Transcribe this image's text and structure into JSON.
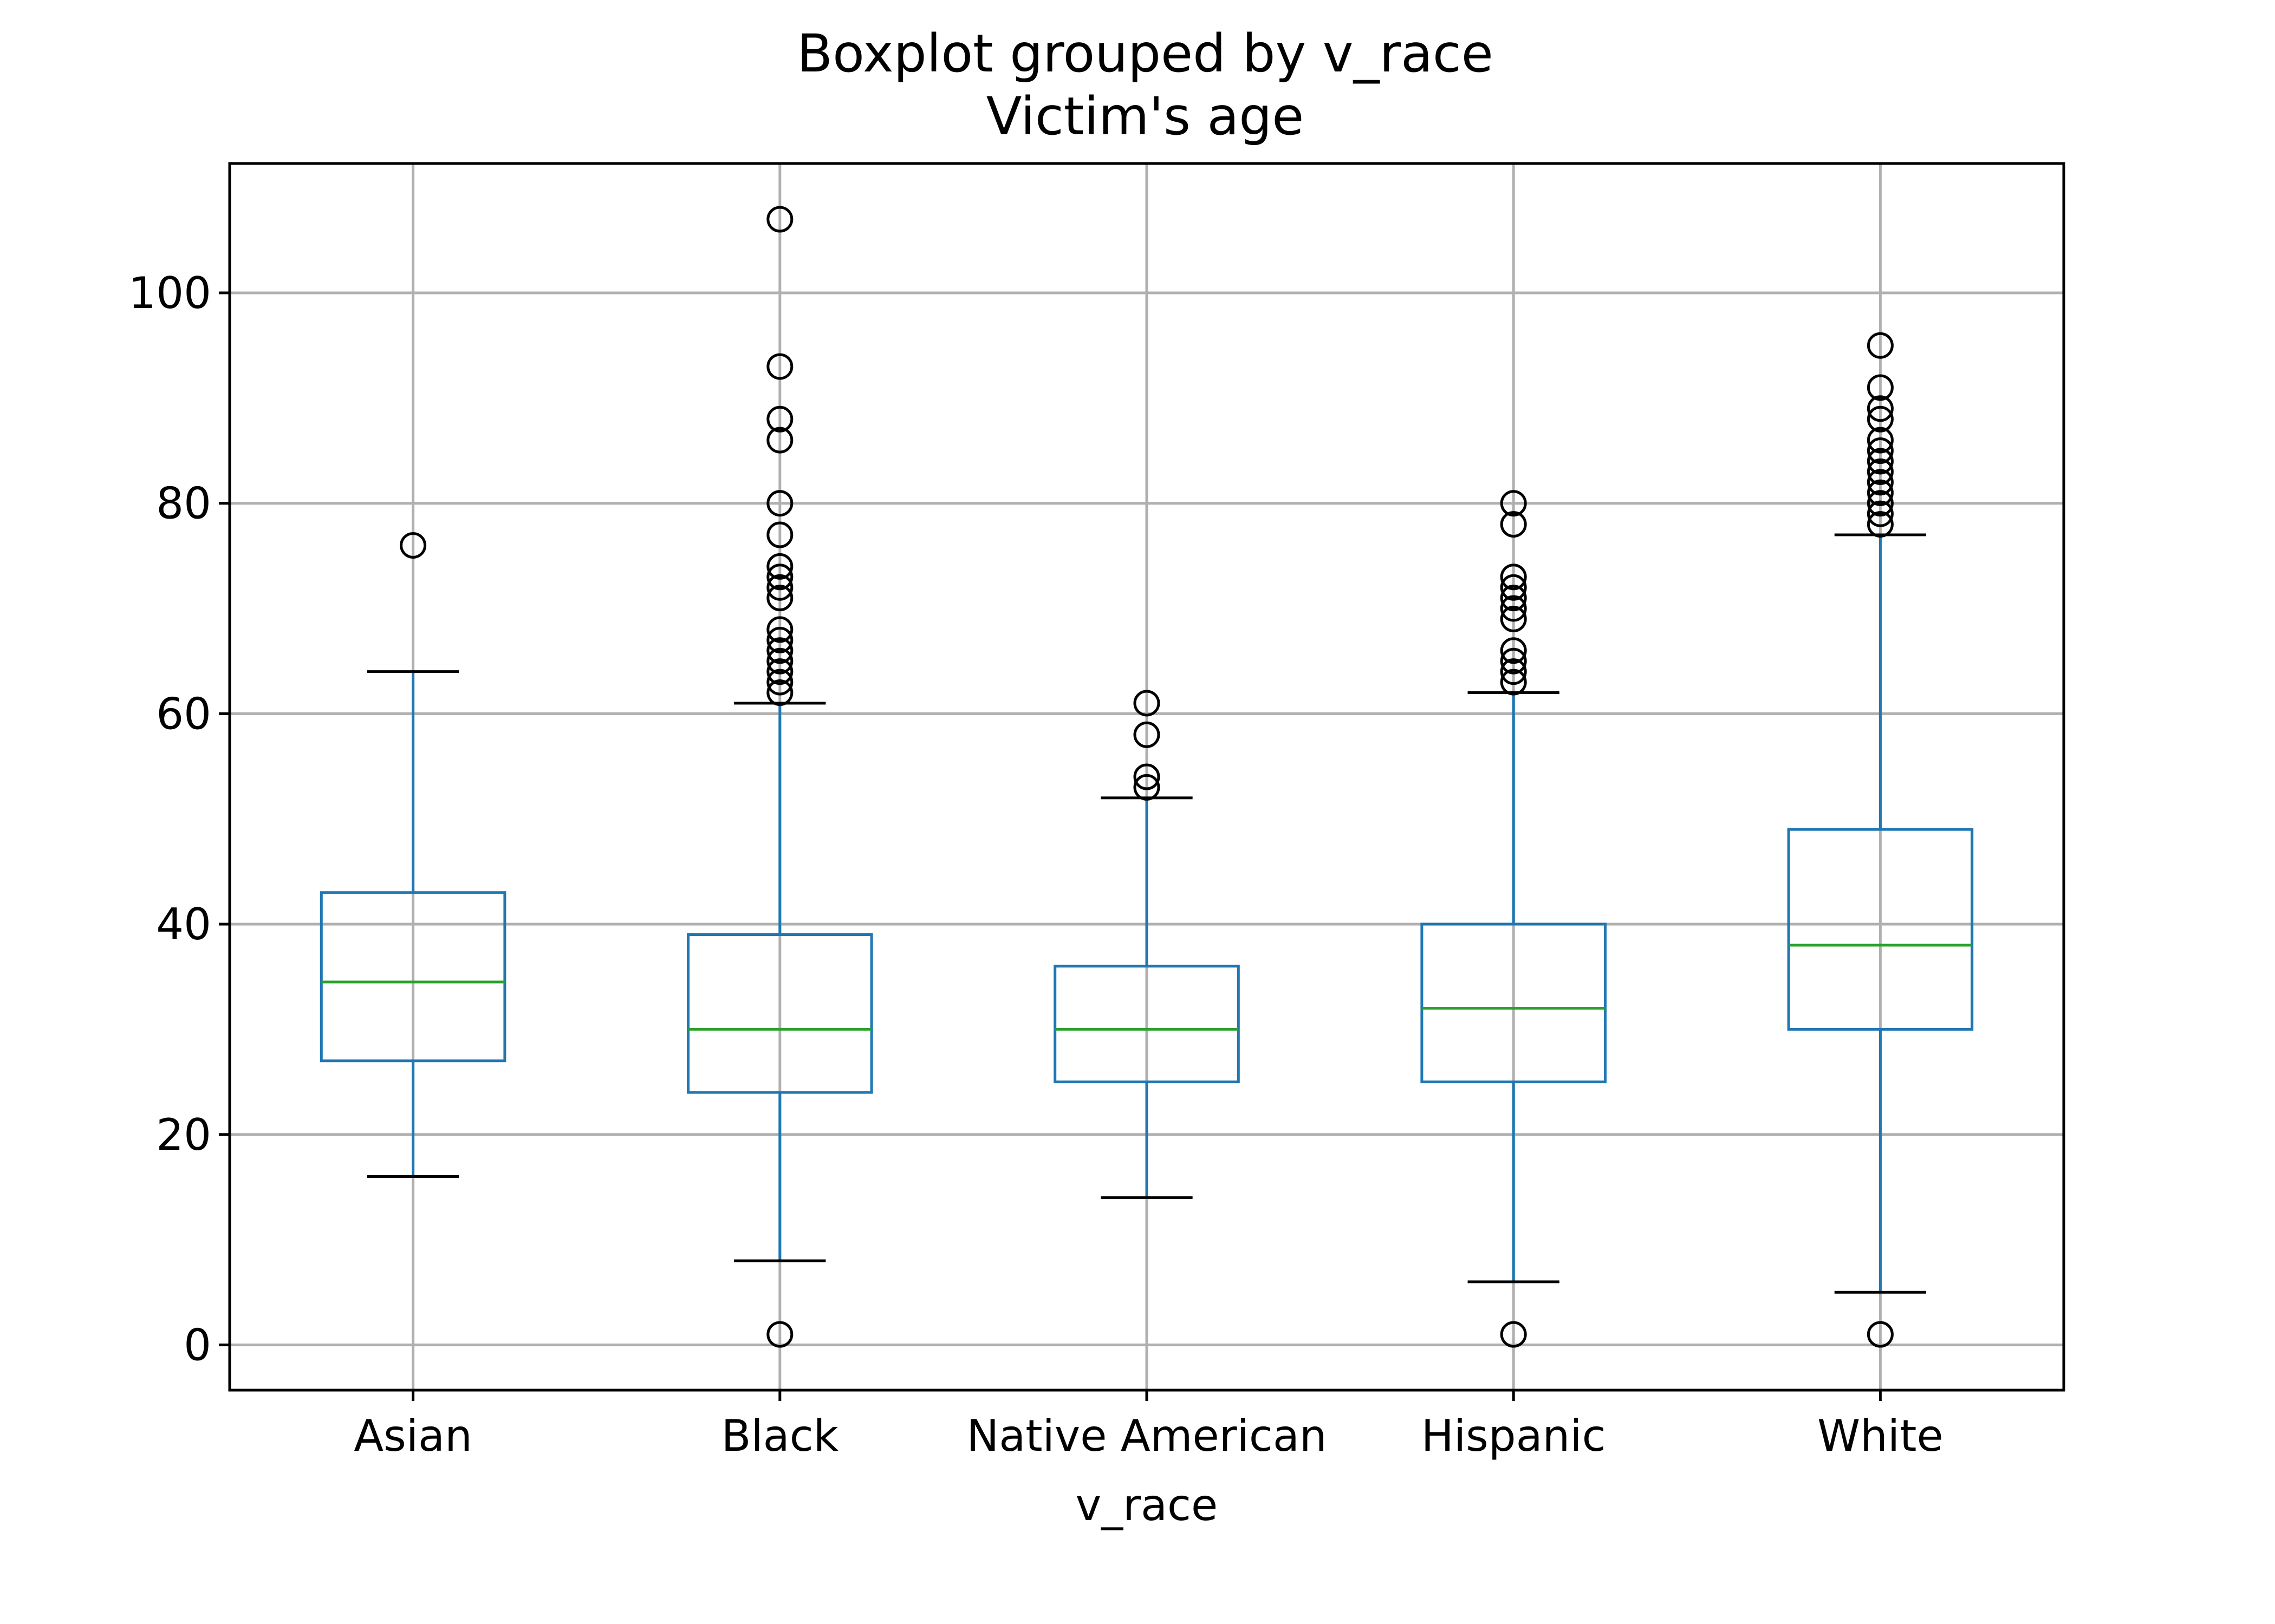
{
  "chart_data": {
    "type": "box",
    "title": "Boxplot grouped by v_race",
    "subtitle": "Victim's age",
    "xlabel": "v_race",
    "ylabel": "",
    "ylim": [
      -4.3,
      112.3
    ],
    "yticks": [
      0,
      20,
      40,
      60,
      80,
      100
    ],
    "grid": true,
    "colors": {
      "box": "#1f77b4",
      "median": "#2ca02c",
      "whisker": "#1f77b4",
      "cap": "#000000",
      "flier": "#000000"
    },
    "categories": [
      "Asian",
      "Black",
      "Native American",
      "Hispanic",
      "White"
    ],
    "boxes": [
      {
        "category": "Asian",
        "whisker_low": 16,
        "q1": 27,
        "median": 34.5,
        "q3": 43,
        "whisker_high": 64,
        "outliers": [
          76
        ]
      },
      {
        "category": "Black",
        "whisker_low": 8,
        "q1": 24,
        "median": 30,
        "q3": 39,
        "whisker_high": 61,
        "outliers": [
          1,
          62,
          63,
          64,
          65,
          66,
          67,
          68,
          71,
          72,
          73,
          74,
          77,
          80,
          86,
          88,
          93,
          107
        ]
      },
      {
        "category": "Native American",
        "whisker_low": 14,
        "q1": 25,
        "median": 30,
        "q3": 36,
        "whisker_high": 52,
        "outliers": [
          53,
          54,
          58,
          61
        ]
      },
      {
        "category": "Hispanic",
        "whisker_low": 6,
        "q1": 25,
        "median": 32,
        "q3": 40,
        "whisker_high": 62,
        "outliers": [
          1,
          63,
          64,
          65,
          66,
          69,
          70,
          71,
          72,
          73,
          78,
          80
        ]
      },
      {
        "category": "White",
        "whisker_low": 5,
        "q1": 30,
        "median": 38,
        "q3": 49,
        "whisker_high": 77,
        "outliers": [
          1,
          78,
          79,
          80,
          81,
          82,
          83,
          84,
          85,
          86,
          88,
          89,
          91,
          95
        ]
      }
    ]
  }
}
